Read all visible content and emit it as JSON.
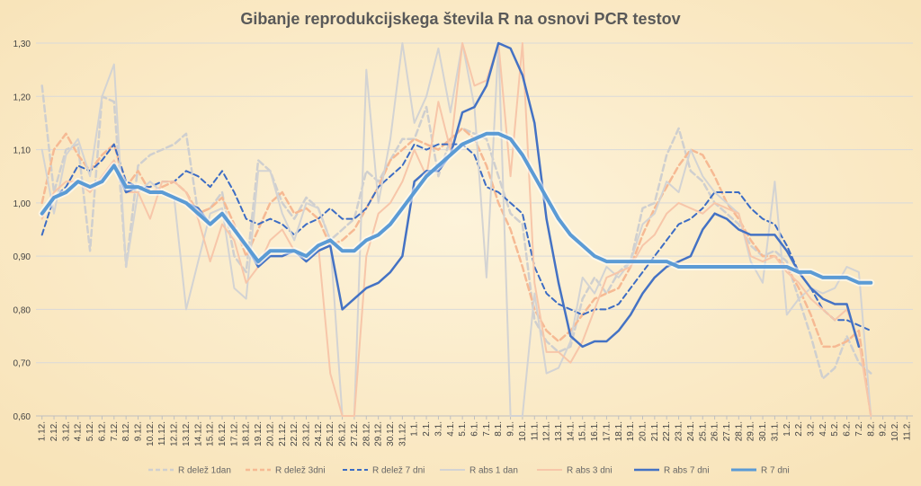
{
  "chart_data": {
    "type": "line",
    "title": "Gibanje reprodukcijskega števila R na osnovi PCR testov",
    "xlabel": "",
    "ylabel": "",
    "ylim": [
      0.6,
      1.3
    ],
    "yticks": [
      "0,60",
      "0,70",
      "0,80",
      "0,90",
      "1,00",
      "1,10",
      "1,20",
      "1,30"
    ],
    "grid": true,
    "legend_position": "bottom",
    "categories": [
      "1.12.",
      "2.12.",
      "3.12.",
      "4.12.",
      "5.12.",
      "6.12.",
      "7.12.",
      "8.12.",
      "9.12.",
      "10.12.",
      "11.12.",
      "12.12.",
      "13.12.",
      "14.12.",
      "15.12.",
      "16.12.",
      "17.12.",
      "18.12.",
      "19.12.",
      "20.12.",
      "21.12.",
      "22.12.",
      "23.12.",
      "24.12.",
      "25.12.",
      "26.12.",
      "27.12.",
      "28.12.",
      "29.12.",
      "30.12.",
      "31.12.",
      "1.1.",
      "2.1.",
      "3.1.",
      "4.1.",
      "5.1.",
      "6.1.",
      "7.1.",
      "8.1.",
      "9.1.",
      "10.1.",
      "11.1.",
      "12.1.",
      "13.1.",
      "14.1.",
      "15.1.",
      "16.1.",
      "17.1.",
      "18.1.",
      "19.1.",
      "20.1.",
      "21.1.",
      "22.1.",
      "23.1.",
      "24.1.",
      "25.1.",
      "26.1.",
      "27.1.",
      "28.1.",
      "29.1.",
      "30.1.",
      "31.1.",
      "1.2.",
      "2.2.",
      "3.2.",
      "4.2.",
      "5.2.",
      "6.2.",
      "7.2.",
      "8.2.",
      "9.2.",
      "10.2.",
      "11.2."
    ],
    "series": [
      {
        "name": "R delež 1dan",
        "color": "#cfcfcf",
        "dash": "7,4",
        "width": 2.5,
        "values": [
          1.22,
          1.02,
          1.1,
          1.11,
          0.91,
          1.2,
          1.19,
          0.88,
          1.07,
          1.09,
          1.1,
          1.11,
          1.13,
          0.98,
          0.99,
          1.02,
          0.9,
          0.87,
          1.08,
          1.06,
          1.0,
          0.97,
          1.01,
          0.99,
          0.93,
          0.95,
          0.97,
          1.06,
          1.04,
          1.08,
          1.12,
          1.12,
          1.18,
          1.05,
          1.12,
          1.14,
          1.13,
          1.12,
          1.05,
          0.98,
          0.96,
          0.78,
          0.74,
          0.72,
          0.73,
          0.82,
          0.86,
          0.83,
          0.87,
          0.89,
          0.99,
          1.0,
          1.09,
          1.14,
          1.06,
          1.04,
          1.0,
          0.98,
          0.96,
          0.92,
          0.9,
          0.91,
          0.89,
          0.82,
          0.75,
          0.67,
          0.69,
          0.75,
          0.7,
          0.68,
          null,
          null,
          null
        ]
      },
      {
        "name": "R delež 3dni",
        "color": "#f6b993",
        "dash": "7,4",
        "width": 2.5,
        "values": [
          1.0,
          1.1,
          1.13,
          1.09,
          1.06,
          1.09,
          1.11,
          1.03,
          1.06,
          1.02,
          1.03,
          1.04,
          1.02,
          0.98,
          0.99,
          1.01,
          0.96,
          0.9,
          0.95,
          1.0,
          1.02,
          0.98,
          0.99,
          0.97,
          0.92,
          0.93,
          0.95,
          0.99,
          1.03,
          1.08,
          1.1,
          1.12,
          1.11,
          1.1,
          1.12,
          1.14,
          1.12,
          1.07,
          1.0,
          0.95,
          0.88,
          0.8,
          0.76,
          0.74,
          0.76,
          0.79,
          0.82,
          0.83,
          0.84,
          0.88,
          0.94,
          0.99,
          1.03,
          1.07,
          1.1,
          1.09,
          1.05,
          1.0,
          0.97,
          0.93,
          0.9,
          0.9,
          0.88,
          0.84,
          0.79,
          0.73,
          0.73,
          0.74,
          0.76,
          0.6,
          null,
          null,
          null
        ]
      },
      {
        "name": "R delež 7 dni",
        "color": "#3c6cc4",
        "dash": "6,4",
        "width": 2,
        "values": [
          0.94,
          1.01,
          1.03,
          1.07,
          1.06,
          1.08,
          1.11,
          1.04,
          1.03,
          1.03,
          1.04,
          1.04,
          1.06,
          1.05,
          1.03,
          1.06,
          1.02,
          0.97,
          0.96,
          0.97,
          0.96,
          0.94,
          0.96,
          0.97,
          0.99,
          0.97,
          0.97,
          0.99,
          1.03,
          1.05,
          1.07,
          1.11,
          1.1,
          1.11,
          1.11,
          1.11,
          1.09,
          1.03,
          1.02,
          1.0,
          0.98,
          0.88,
          0.83,
          0.81,
          0.8,
          0.79,
          0.8,
          0.8,
          0.81,
          0.84,
          0.87,
          0.9,
          0.93,
          0.96,
          0.97,
          0.99,
          1.02,
          1.02,
          1.02,
          0.99,
          0.97,
          0.96,
          0.92,
          0.87,
          0.84,
          0.8,
          0.78,
          0.78,
          0.77,
          0.76,
          null,
          null,
          null
        ]
      },
      {
        "name": "R abs 1 dan",
        "color": "#d3d3d3",
        "dash": "",
        "width": 2,
        "values": [
          1.1,
          0.98,
          1.09,
          1.12,
          1.05,
          1.2,
          1.26,
          0.88,
          1.02,
          1.04,
          1.02,
          1.01,
          0.8,
          0.89,
          0.98,
          0.99,
          0.84,
          0.82,
          1.06,
          1.06,
          0.98,
          0.93,
          1.0,
          0.99,
          0.93,
          0.59,
          0.59,
          1.25,
          1.0,
          1.12,
          1.3,
          1.15,
          1.2,
          1.29,
          1.17,
          1.3,
          1.18,
          0.86,
          1.3,
          0.6,
          0.59,
          0.83,
          0.68,
          0.69,
          0.74,
          0.86,
          0.83,
          0.88,
          0.86,
          0.89,
          0.96,
          0.98,
          1.04,
          1.02,
          1.1,
          1.05,
          1.02,
          1.0,
          0.98,
          0.89,
          0.85,
          1.04,
          0.79,
          0.82,
          0.84,
          0.83,
          0.84,
          0.88,
          0.87,
          0.59,
          null,
          null,
          null
        ]
      },
      {
        "name": "R abs 3 dni",
        "color": "#f7c6a9",
        "dash": "",
        "width": 2,
        "values": [
          0.97,
          1.02,
          1.04,
          1.04,
          1.02,
          1.05,
          1.08,
          1.02,
          1.02,
          0.97,
          1.04,
          1.04,
          1.02,
          0.97,
          0.89,
          0.96,
          0.93,
          0.85,
          0.88,
          0.93,
          0.95,
          0.91,
          0.9,
          0.92,
          0.68,
          0.59,
          0.59,
          0.9,
          0.98,
          1.0,
          1.04,
          1.1,
          1.05,
          1.19,
          1.1,
          1.3,
          1.22,
          1.23,
          1.3,
          1.05,
          1.3,
          0.85,
          0.72,
          0.72,
          0.7,
          0.74,
          0.8,
          0.86,
          0.87,
          0.88,
          0.92,
          0.94,
          0.98,
          1.0,
          0.99,
          0.98,
          1.0,
          0.99,
          0.98,
          0.9,
          0.89,
          0.9,
          0.87,
          0.85,
          0.82,
          0.8,
          0.78,
          0.8,
          0.74,
          0.59,
          null,
          null,
          null
        ]
      },
      {
        "name": "R abs 7 dni",
        "color": "#4472c4",
        "dash": "",
        "width": 2.5,
        "values": [
          0.98,
          1.01,
          1.02,
          1.04,
          1.03,
          1.04,
          1.07,
          1.02,
          1.03,
          1.02,
          1.02,
          1.01,
          1.0,
          0.99,
          0.96,
          0.98,
          0.95,
          0.92,
          0.88,
          0.9,
          0.9,
          0.91,
          0.89,
          0.91,
          0.92,
          0.8,
          0.82,
          0.84,
          0.85,
          0.87,
          0.9,
          1.04,
          1.06,
          1.06,
          1.09,
          1.17,
          1.18,
          1.22,
          1.31,
          1.29,
          1.24,
          1.15,
          0.97,
          0.85,
          0.75,
          0.73,
          0.74,
          0.74,
          0.76,
          0.79,
          0.83,
          0.86,
          0.88,
          0.89,
          0.9,
          0.95,
          0.98,
          0.97,
          0.95,
          0.94,
          0.94,
          0.94,
          0.91,
          0.87,
          0.84,
          0.82,
          0.81,
          0.81,
          0.73,
          null,
          null,
          null,
          null
        ]
      },
      {
        "name": "R 7 dni",
        "color": "#5b9bd5",
        "dash": "",
        "width": 4,
        "values": [
          0.98,
          1.01,
          1.02,
          1.04,
          1.03,
          1.04,
          1.07,
          1.03,
          1.03,
          1.02,
          1.02,
          1.01,
          1.0,
          0.98,
          0.96,
          0.98,
          0.95,
          0.92,
          0.89,
          0.91,
          0.91,
          0.91,
          0.9,
          0.92,
          0.93,
          0.91,
          0.91,
          0.93,
          0.94,
          0.96,
          0.99,
          1.02,
          1.05,
          1.07,
          1.09,
          1.11,
          1.12,
          1.13,
          1.13,
          1.12,
          1.09,
          1.05,
          1.01,
          0.97,
          0.94,
          0.92,
          0.9,
          0.89,
          0.89,
          0.89,
          0.89,
          0.89,
          0.89,
          0.88,
          0.88,
          0.88,
          0.88,
          0.88,
          0.88,
          0.88,
          0.88,
          0.88,
          0.88,
          0.87,
          0.87,
          0.86,
          0.86,
          0.86,
          0.85,
          0.85,
          null,
          null,
          null
        ]
      }
    ]
  }
}
